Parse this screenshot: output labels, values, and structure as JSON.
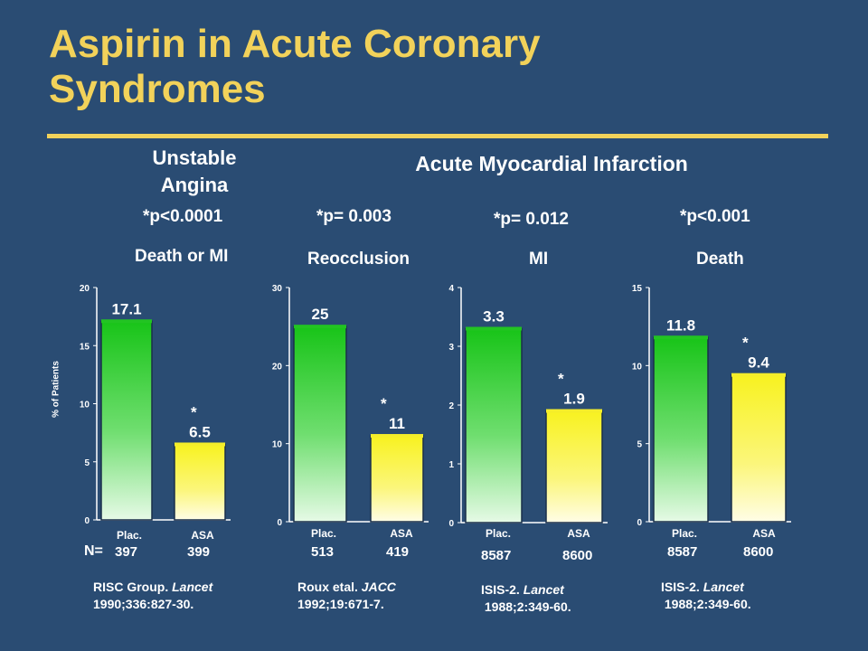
{
  "slide": {
    "title_line1": "Aspirin in Acute Coronary",
    "title_line2": "Syndromes",
    "ua_heading_line1": "Unstable",
    "ua_heading_line2": "Angina",
    "ami_heading": "Acute Myocardial Infarction",
    "ylabel": "% of Patients",
    "n_label": "N=",
    "colors": {
      "background": "#2a4c73",
      "title": "#f2d25a",
      "placebo_bar": "#22c422",
      "aspirin_bar": "#f5ee2a"
    }
  },
  "chart_data": [
    {
      "type": "bar",
      "pvalue": "*p<0.0001",
      "endpoint": "Death or MI",
      "categories": [
        "Plac.",
        "ASA"
      ],
      "values": [
        17.1,
        6.5
      ],
      "value_labels": [
        "17.1",
        "6.5"
      ],
      "significance": [
        "",
        "*"
      ],
      "n": [
        "397",
        "399"
      ],
      "ylim": [
        0,
        20
      ],
      "yticks": [
        0,
        5,
        10,
        15,
        20
      ],
      "ylabel": "% of Patients",
      "reference": {
        "authors": "RISC Group.",
        "journal": "Lancet",
        "citation": "1990;336:827-30."
      }
    },
    {
      "type": "bar",
      "pvalue": "*p= 0.003",
      "endpoint": "Reocclusion",
      "categories": [
        "Plac.",
        "ASA"
      ],
      "values": [
        25,
        11
      ],
      "value_labels": [
        "25",
        "11"
      ],
      "significance": [
        "",
        "*"
      ],
      "n": [
        "513",
        "419"
      ],
      "ylim": [
        0,
        30
      ],
      "yticks": [
        0,
        10,
        20,
        30
      ],
      "reference": {
        "authors": "Roux etal.",
        "journal": "JACC",
        "citation": "1992;19:671-7."
      }
    },
    {
      "type": "bar",
      "pvalue": "*p= 0.012",
      "endpoint": "MI",
      "categories": [
        "Plac.",
        "ASA"
      ],
      "values": [
        3.3,
        1.9
      ],
      "value_labels": [
        "3.3",
        "1.9"
      ],
      "significance": [
        "",
        "*"
      ],
      "n": [
        "8587",
        "8600"
      ],
      "ylim": [
        0,
        4
      ],
      "yticks": [
        0,
        1,
        2,
        3,
        4
      ],
      "reference": {
        "authors": "ISIS-2.",
        "journal": "Lancet",
        "citation": "1988;2:349-60."
      }
    },
    {
      "type": "bar",
      "pvalue": "*p<0.001",
      "endpoint": "Death",
      "categories": [
        "Plac.",
        "ASA"
      ],
      "values": [
        11.8,
        9.4
      ],
      "value_labels": [
        "11.8",
        "9.4"
      ],
      "significance": [
        "",
        "*"
      ],
      "n": [
        "8587",
        "8600"
      ],
      "ylim": [
        0,
        15
      ],
      "yticks": [
        0,
        5,
        10,
        15
      ],
      "reference": {
        "authors": "ISIS-2.",
        "journal": "Lancet",
        "citation": "1988;2:349-60."
      }
    }
  ]
}
